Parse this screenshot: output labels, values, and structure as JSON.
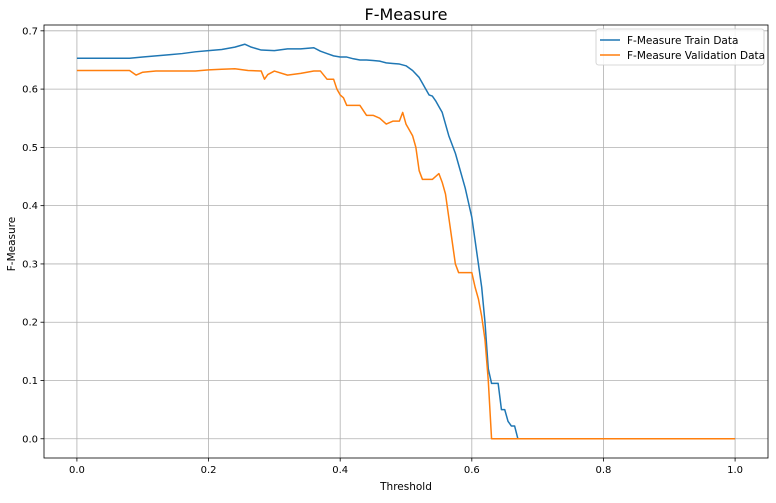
{
  "chart_data": {
    "type": "line",
    "title": "F-Measure",
    "xlabel": "Threshold",
    "ylabel": "F-Measure",
    "xlim": [
      -0.05,
      1.05
    ],
    "ylim": [
      -0.033,
      0.71
    ],
    "xticks": [
      0.0,
      0.2,
      0.4,
      0.6,
      0.8,
      1.0
    ],
    "xtick_labels": [
      "0.0",
      "0.2",
      "0.4",
      "0.6",
      "0.8",
      "1.0"
    ],
    "yticks": [
      0.0,
      0.1,
      0.2,
      0.3,
      0.4,
      0.5,
      0.6,
      0.7
    ],
    "ytick_labels": [
      "0.0",
      "0.1",
      "0.2",
      "0.3",
      "0.4",
      "0.5",
      "0.6",
      "0.7"
    ],
    "grid": true,
    "legend_position": "top-right",
    "series": [
      {
        "name": "F-Measure Train Data",
        "color": "#1f77b4",
        "x": [
          0.0,
          0.04,
          0.08,
          0.1,
          0.12,
          0.14,
          0.16,
          0.18,
          0.2,
          0.22,
          0.24,
          0.255,
          0.265,
          0.28,
          0.3,
          0.32,
          0.34,
          0.36,
          0.37,
          0.38,
          0.39,
          0.4,
          0.41,
          0.42,
          0.43,
          0.44,
          0.45,
          0.46,
          0.47,
          0.48,
          0.49,
          0.5,
          0.51,
          0.52,
          0.525,
          0.53,
          0.535,
          0.54,
          0.545,
          0.55,
          0.555,
          0.56,
          0.565,
          0.57,
          0.575,
          0.58,
          0.585,
          0.59,
          0.595,
          0.6,
          0.605,
          0.61,
          0.615,
          0.62,
          0.625,
          0.63,
          0.64,
          0.645,
          0.65,
          0.655,
          0.66,
          0.665,
          0.67,
          1.0
        ],
        "y": [
          0.653,
          0.653,
          0.653,
          0.655,
          0.657,
          0.659,
          0.661,
          0.664,
          0.666,
          0.668,
          0.672,
          0.677,
          0.672,
          0.667,
          0.666,
          0.669,
          0.669,
          0.671,
          0.665,
          0.661,
          0.657,
          0.655,
          0.655,
          0.652,
          0.65,
          0.65,
          0.649,
          0.648,
          0.645,
          0.644,
          0.643,
          0.64,
          0.632,
          0.62,
          0.61,
          0.6,
          0.59,
          0.588,
          0.58,
          0.57,
          0.56,
          0.54,
          0.52,
          0.505,
          0.49,
          0.47,
          0.45,
          0.43,
          0.405,
          0.38,
          0.34,
          0.3,
          0.26,
          0.2,
          0.12,
          0.095,
          0.095,
          0.05,
          0.05,
          0.03,
          0.022,
          0.022,
          0.0,
          0.0
        ]
      },
      {
        "name": "F-Measure Validation Data",
        "color": "#ff7f0e",
        "x": [
          0.0,
          0.04,
          0.08,
          0.09,
          0.1,
          0.12,
          0.14,
          0.16,
          0.18,
          0.2,
          0.22,
          0.24,
          0.26,
          0.28,
          0.285,
          0.29,
          0.3,
          0.32,
          0.34,
          0.36,
          0.37,
          0.38,
          0.39,
          0.395,
          0.4,
          0.405,
          0.41,
          0.42,
          0.43,
          0.44,
          0.45,
          0.46,
          0.47,
          0.48,
          0.49,
          0.495,
          0.5,
          0.51,
          0.515,
          0.52,
          0.525,
          0.53,
          0.54,
          0.55,
          0.555,
          0.56,
          0.565,
          0.57,
          0.575,
          0.58,
          0.59,
          0.6,
          0.605,
          0.61,
          0.615,
          0.62,
          0.625,
          0.63,
          1.0
        ],
        "y": [
          0.632,
          0.632,
          0.632,
          0.624,
          0.629,
          0.631,
          0.631,
          0.631,
          0.631,
          0.633,
          0.634,
          0.635,
          0.632,
          0.631,
          0.617,
          0.625,
          0.631,
          0.624,
          0.627,
          0.631,
          0.631,
          0.617,
          0.617,
          0.6,
          0.59,
          0.585,
          0.572,
          0.572,
          0.572,
          0.555,
          0.555,
          0.55,
          0.54,
          0.545,
          0.545,
          0.56,
          0.54,
          0.52,
          0.5,
          0.46,
          0.445,
          0.445,
          0.445,
          0.455,
          0.44,
          0.42,
          0.38,
          0.34,
          0.3,
          0.285,
          0.285,
          0.285,
          0.26,
          0.24,
          0.21,
          0.17,
          0.1,
          0.0,
          0.0
        ]
      }
    ]
  }
}
